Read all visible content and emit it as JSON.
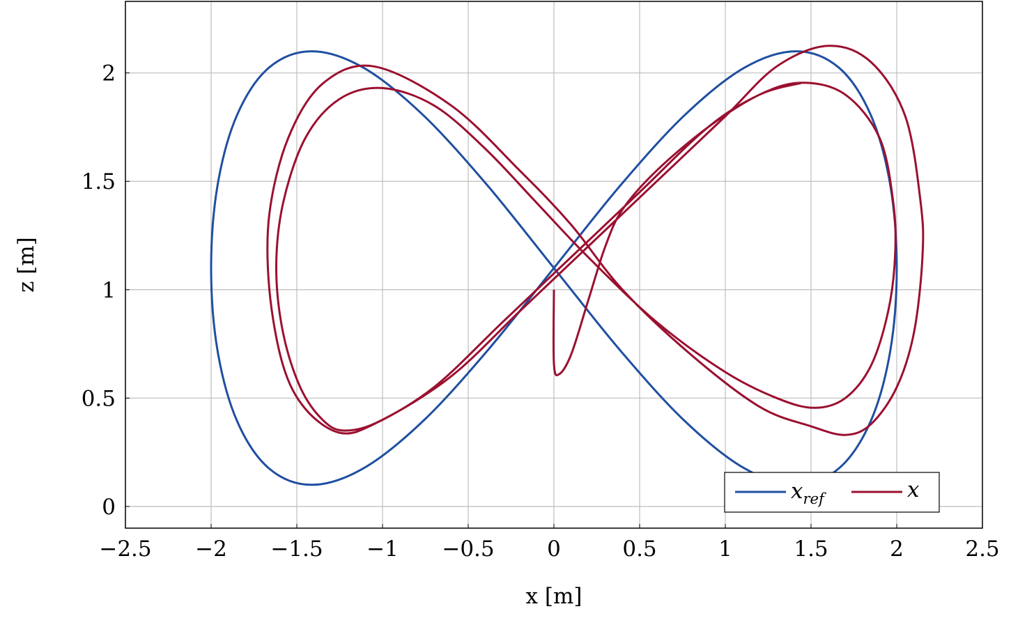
{
  "chart_data": {
    "type": "line",
    "xlabel": "x [m]",
    "ylabel": "z [m]",
    "xlim": [
      -2.5,
      2.5
    ],
    "ylim": [
      -0.1,
      2.33
    ],
    "grid": true,
    "legend_placement": "bottom-right",
    "x_ticks": [
      -2.5,
      -2,
      -1.5,
      -1,
      -0.5,
      0,
      0.5,
      1,
      1.5,
      2,
      2.5
    ],
    "x_tick_labels": [
      "−2.5",
      "−2",
      "−1.5",
      "−1",
      "−0.5",
      "0",
      "0.5",
      "1",
      "1.5",
      "2",
      "2.5"
    ],
    "y_ticks": [
      0,
      0.5,
      1,
      1.5,
      2
    ],
    "y_tick_labels": [
      "0",
      "0.5",
      "1",
      "1.5",
      "2"
    ],
    "series": [
      {
        "name": "x_ref",
        "legend_base": "x",
        "legend_sub": "ref",
        "color": "#1f4fa0",
        "closed": true,
        "points": [
          [
            2,
            1.1
          ],
          [
            1.962,
            1.483
          ],
          [
            1.848,
            1.807
          ],
          [
            1.663,
            2.024
          ],
          [
            1.414,
            2.1
          ],
          [
            1.111,
            2.024
          ],
          [
            0.765,
            1.807
          ],
          [
            0.39,
            1.483
          ],
          [
            0,
            1.1
          ],
          [
            -0.39,
            0.717
          ],
          [
            -0.765,
            0.393
          ],
          [
            -1.111,
            0.176
          ],
          [
            -1.414,
            0.1
          ],
          [
            -1.663,
            0.176
          ],
          [
            -1.848,
            0.393
          ],
          [
            -1.962,
            0.717
          ],
          [
            -2,
            1.1
          ],
          [
            -1.962,
            1.483
          ],
          [
            -1.848,
            1.807
          ],
          [
            -1.663,
            2.024
          ],
          [
            -1.414,
            2.1
          ],
          [
            -1.111,
            2.024
          ],
          [
            -0.765,
            1.807
          ],
          [
            -0.39,
            1.483
          ],
          [
            0,
            1.1
          ],
          [
            0.39,
            0.717
          ],
          [
            0.765,
            0.393
          ],
          [
            1.111,
            0.176
          ],
          [
            1.414,
            0.1
          ],
          [
            1.663,
            0.176
          ],
          [
            1.848,
            0.393
          ],
          [
            1.962,
            0.717
          ]
        ]
      },
      {
        "name": "x",
        "legend_base": "x",
        "legend_sub": "",
        "color": "#9b1030",
        "closed": false,
        "points": [
          [
            0,
            1.0
          ],
          [
            0,
            0.66
          ],
          [
            0.03,
            0.61
          ],
          [
            0.1,
            0.7
          ],
          [
            0.2,
            0.95
          ],
          [
            0.3,
            1.2
          ],
          [
            0.4,
            1.37
          ],
          [
            0.6,
            1.55
          ],
          [
            0.9,
            1.75
          ],
          [
            1.2,
            1.9
          ],
          [
            1.45,
            1.955
          ],
          [
            1.7,
            1.9
          ],
          [
            1.9,
            1.7
          ],
          [
            1.98,
            1.4
          ],
          [
            1.99,
            1.15
          ],
          [
            1.95,
            0.9
          ],
          [
            1.85,
            0.65
          ],
          [
            1.7,
            0.5
          ],
          [
            1.52,
            0.455
          ],
          [
            1.3,
            0.5
          ],
          [
            1.0,
            0.62
          ],
          [
            0.6,
            0.85
          ],
          [
            0.2,
            1.15
          ],
          [
            -0.1,
            1.4
          ],
          [
            -0.4,
            1.65
          ],
          [
            -0.7,
            1.85
          ],
          [
            -1.0,
            1.93
          ],
          [
            -1.25,
            1.88
          ],
          [
            -1.45,
            1.7
          ],
          [
            -1.58,
            1.4
          ],
          [
            -1.62,
            1.1
          ],
          [
            -1.58,
            0.8
          ],
          [
            -1.48,
            0.55
          ],
          [
            -1.35,
            0.4
          ],
          [
            -1.22,
            0.35
          ],
          [
            -1.0,
            0.4
          ],
          [
            -0.6,
            0.6
          ],
          [
            -0.2,
            0.9
          ],
          [
            0.2,
            1.2
          ],
          [
            0.6,
            1.5
          ],
          [
            1.0,
            1.8
          ],
          [
            1.3,
            2.03
          ],
          [
            1.6,
            2.125
          ],
          [
            1.85,
            2.05
          ],
          [
            2.05,
            1.8
          ],
          [
            2.14,
            1.4
          ],
          [
            2.15,
            1.15
          ],
          [
            2.1,
            0.8
          ],
          [
            2.0,
            0.55
          ],
          [
            1.85,
            0.38
          ],
          [
            1.7,
            0.33
          ],
          [
            1.5,
            0.37
          ],
          [
            1.2,
            0.46
          ],
          [
            0.8,
            0.7
          ],
          [
            0.4,
            1.0
          ],
          [
            0.1,
            1.3
          ],
          [
            -0.2,
            1.55
          ],
          [
            -0.6,
            1.85
          ],
          [
            -1.05,
            2.03
          ],
          [
            -1.35,
            1.95
          ],
          [
            -1.55,
            1.7
          ],
          [
            -1.66,
            1.35
          ],
          [
            -1.66,
            1.0
          ],
          [
            -1.58,
            0.65
          ],
          [
            -1.45,
            0.45
          ],
          [
            -1.25,
            0.34
          ],
          [
            -1.05,
            0.38
          ],
          [
            -0.7,
            0.55
          ],
          [
            -0.3,
            0.85
          ],
          [
            0.1,
            1.15
          ],
          [
            0.5,
            1.45
          ],
          [
            0.9,
            1.75
          ],
          [
            1.2,
            1.9
          ],
          [
            1.45,
            1.955
          ]
        ]
      }
    ]
  }
}
